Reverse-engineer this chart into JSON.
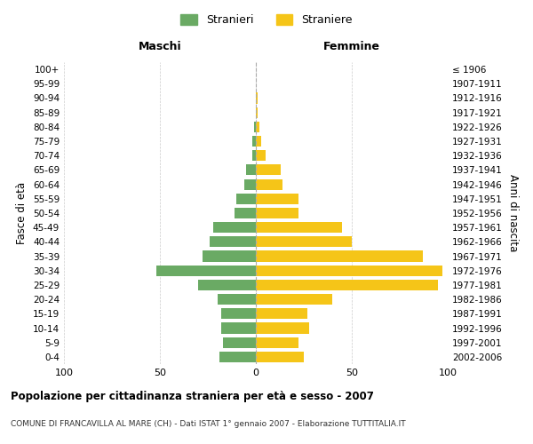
{
  "age_groups": [
    "0-4",
    "5-9",
    "10-14",
    "15-19",
    "20-24",
    "25-29",
    "30-34",
    "35-39",
    "40-44",
    "45-49",
    "50-54",
    "55-59",
    "60-64",
    "65-69",
    "70-74",
    "75-79",
    "80-84",
    "85-89",
    "90-94",
    "95-99",
    "100+"
  ],
  "birth_years": [
    "2002-2006",
    "1997-2001",
    "1992-1996",
    "1987-1991",
    "1982-1986",
    "1977-1981",
    "1972-1976",
    "1967-1971",
    "1962-1966",
    "1957-1961",
    "1952-1956",
    "1947-1951",
    "1942-1946",
    "1937-1941",
    "1932-1936",
    "1927-1931",
    "1922-1926",
    "1917-1921",
    "1912-1916",
    "1907-1911",
    "≤ 1906"
  ],
  "maschi": [
    19,
    17,
    18,
    18,
    20,
    30,
    52,
    28,
    24,
    22,
    11,
    10,
    6,
    5,
    2,
    2,
    1,
    0,
    0,
    0,
    0
  ],
  "femmine": [
    25,
    22,
    28,
    27,
    40,
    95,
    97,
    87,
    50,
    45,
    22,
    22,
    14,
    13,
    5,
    3,
    2,
    1,
    1,
    0,
    0
  ],
  "maschi_color": "#6aaa64",
  "femmine_color": "#f5c518",
  "background_color": "#ffffff",
  "grid_color": "#cccccc",
  "title": "Popolazione per cittadinanza straniera per età e sesso - 2007",
  "subtitle": "COMUNE DI FRANCAVILLA AL MARE (CH) - Dati ISTAT 1° gennaio 2007 - Elaborazione TUTTITALIA.IT",
  "legend_stranieri": "Stranieri",
  "legend_straniere": "Straniere",
  "xlabel_maschi": "Maschi",
  "xlabel_femmine": "Femmine",
  "ylabel_left": "Fasce di età",
  "ylabel_right": "Anni di nascita",
  "xlim": 100,
  "xticks": [
    -100,
    -50,
    0,
    50,
    100
  ]
}
